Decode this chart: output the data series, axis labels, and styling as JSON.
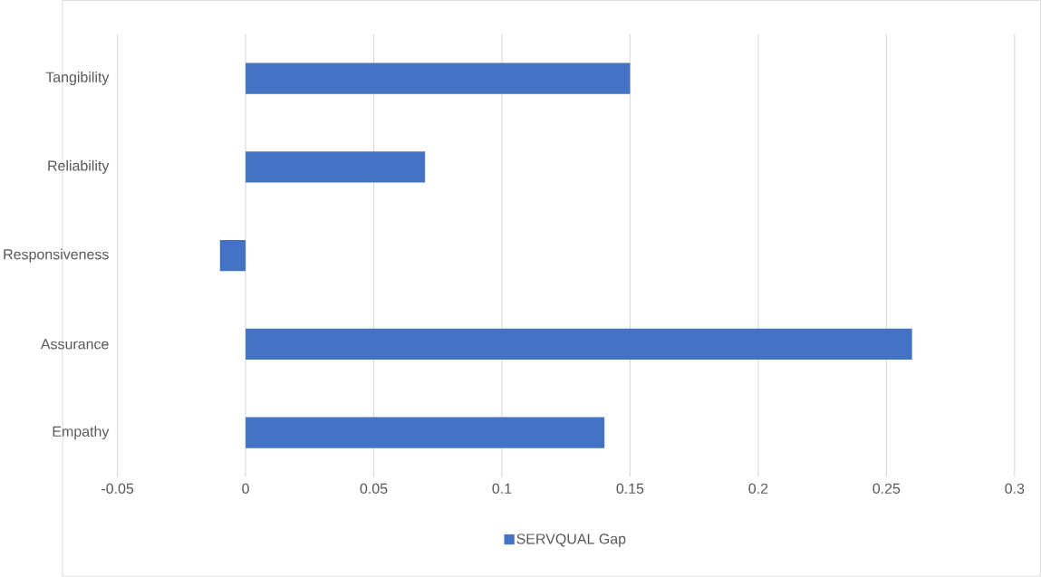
{
  "chart_data": {
    "type": "bar",
    "orientation": "horizontal",
    "categories": [
      "Tangibility",
      "Reliability",
      "Responsiveness",
      "Assurance",
      "Empathy"
    ],
    "series": [
      {
        "name": "SERVQUAL Gap",
        "color": "#4472c4",
        "values": [
          0.15,
          0.07,
          -0.01,
          0.26,
          0.14
        ]
      }
    ],
    "xlim": [
      -0.05,
      0.3
    ],
    "xticks": [
      -0.05,
      0,
      0.05,
      0.1,
      0.15,
      0.2,
      0.25,
      0.3
    ],
    "grid": "x",
    "legend": "bottom"
  }
}
